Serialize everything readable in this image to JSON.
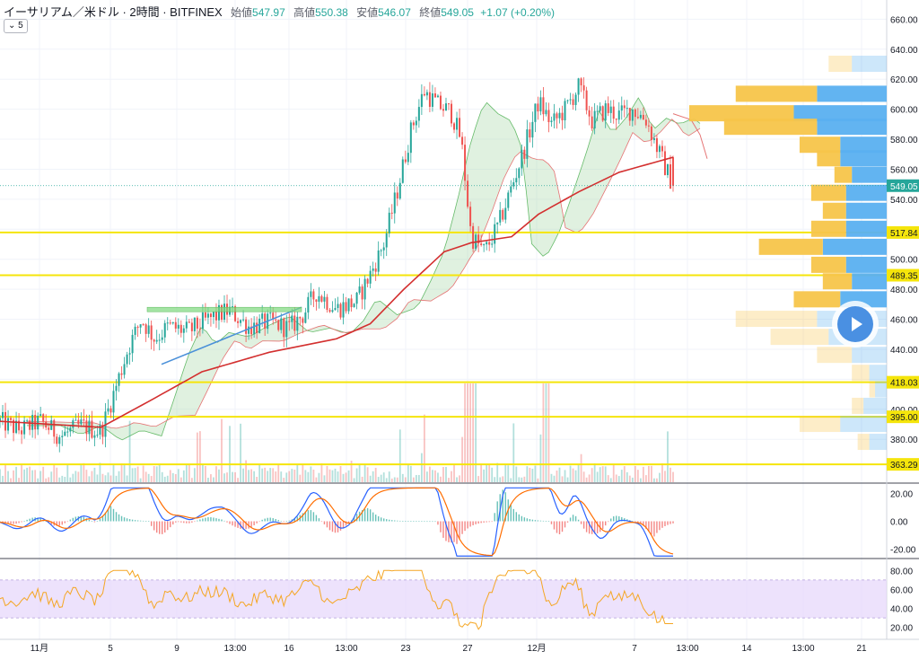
{
  "header": {
    "symbol": "イーサリアム／米ドル · 2時間 · BITFINEX",
    "open_label": "始値",
    "open": "547.97",
    "high_label": "高値",
    "high": "550.38",
    "low_label": "安値",
    "low": "546.07",
    "close_label": "終値",
    "close": "549.05",
    "change": "+1.07 (+0.20%)",
    "interval_chip": "5"
  },
  "colors": {
    "up": "#26a69a",
    "down": "#ef5350",
    "ma": "#d32f2f",
    "cloud_up": "#a5d6a7",
    "cloud_down": "#ef9a9a",
    "level": "#f5e50b",
    "vp_buy": "#f7c54a",
    "vp_sell": "#5ab0f0",
    "macd": "#2962ff",
    "signal": "#ff6d00",
    "rsi": "#f5a623",
    "rsi_band": "#e6d5fb",
    "trend": "#4a90d9",
    "box": "#7ed87e"
  },
  "price_axis": {
    "ticks": [
      "660.00",
      "640.00",
      "620.00",
      "600.00",
      "580.00",
      "560.00",
      "540.00",
      "520.00",
      "500.00",
      "480.00",
      "460.00",
      "440.00",
      "420.00",
      "400.00",
      "380.00"
    ],
    "current": "549.05"
  },
  "levels": [
    {
      "label": "517.84",
      "value": 517.84
    },
    {
      "label": "489.35",
      "value": 489.35
    },
    {
      "label": "418.03",
      "value": 418.03
    },
    {
      "label": "395.00",
      "value": 395.0
    },
    {
      "label": "363.29",
      "value": 363.29
    }
  ],
  "macd_axis": [
    "20.00",
    "0.00",
    "-20.00"
  ],
  "rsi_axis": [
    "80.00",
    "60.00",
    "40.00",
    "20.00"
  ],
  "time_axis": [
    "11月",
    "5",
    "9",
    "13:00",
    "16",
    "13:00",
    "23",
    "27",
    "12月",
    "7",
    "13:00",
    "14",
    "13:00",
    "21"
  ],
  "chart_data": {
    "type": "candlestick",
    "title": "イーサリアム／米ドル · 2時間 · BITFINEX",
    "ylim": [
      355,
      668
    ],
    "price_path": [
      {
        "t": 0.0,
        "p": 392
      },
      {
        "t": 0.03,
        "p": 386
      },
      {
        "t": 0.06,
        "p": 392
      },
      {
        "t": 0.09,
        "p": 382
      },
      {
        "t": 0.12,
        "p": 389
      },
      {
        "t": 0.15,
        "p": 385
      },
      {
        "t": 0.17,
        "p": 412
      },
      {
        "t": 0.19,
        "p": 440
      },
      {
        "t": 0.21,
        "p": 460
      },
      {
        "t": 0.23,
        "p": 447
      },
      {
        "t": 0.25,
        "p": 455
      },
      {
        "t": 0.28,
        "p": 452
      },
      {
        "t": 0.31,
        "p": 460
      },
      {
        "t": 0.34,
        "p": 466
      },
      {
        "t": 0.37,
        "p": 455
      },
      {
        "t": 0.4,
        "p": 458
      },
      {
        "t": 0.43,
        "p": 454
      },
      {
        "t": 0.45,
        "p": 463
      },
      {
        "t": 0.47,
        "p": 478
      },
      {
        "t": 0.5,
        "p": 467
      },
      {
        "t": 0.53,
        "p": 472
      },
      {
        "t": 0.55,
        "p": 490
      },
      {
        "t": 0.57,
        "p": 510
      },
      {
        "t": 0.59,
        "p": 545
      },
      {
        "t": 0.61,
        "p": 585
      },
      {
        "t": 0.63,
        "p": 612
      },
      {
        "t": 0.65,
        "p": 603
      },
      {
        "t": 0.67,
        "p": 598
      },
      {
        "t": 0.685,
        "p": 580
      },
      {
        "t": 0.7,
        "p": 515
      },
      {
        "t": 0.72,
        "p": 505
      },
      {
        "t": 0.74,
        "p": 522
      },
      {
        "t": 0.76,
        "p": 548
      },
      {
        "t": 0.78,
        "p": 575
      },
      {
        "t": 0.8,
        "p": 605
      },
      {
        "t": 0.82,
        "p": 590
      },
      {
        "t": 0.84,
        "p": 600
      },
      {
        "t": 0.86,
        "p": 615
      },
      {
        "t": 0.88,
        "p": 592
      },
      {
        "t": 0.9,
        "p": 600
      },
      {
        "t": 0.92,
        "p": 596
      },
      {
        "t": 0.94,
        "p": 600
      },
      {
        "t": 0.96,
        "p": 593
      },
      {
        "t": 0.98,
        "p": 570
      },
      {
        "t": 1.0,
        "p": 549
      }
    ],
    "moving_average": [
      {
        "t": 0.0,
        "p": 392
      },
      {
        "t": 0.15,
        "p": 388
      },
      {
        "t": 0.22,
        "p": 405
      },
      {
        "t": 0.3,
        "p": 425
      },
      {
        "t": 0.4,
        "p": 438
      },
      {
        "t": 0.5,
        "p": 447
      },
      {
        "t": 0.55,
        "p": 457
      },
      {
        "t": 0.6,
        "p": 480
      },
      {
        "t": 0.66,
        "p": 505
      },
      {
        "t": 0.7,
        "p": 511
      },
      {
        "t": 0.76,
        "p": 515
      },
      {
        "t": 0.8,
        "p": 530
      },
      {
        "t": 0.86,
        "p": 545
      },
      {
        "t": 0.92,
        "p": 558
      },
      {
        "t": 1.0,
        "p": 568
      }
    ],
    "volume_profile_price": [
      {
        "p": 630,
        "buy": 4,
        "sell": 6
      },
      {
        "p": 610,
        "buy": 14,
        "sell": 12
      },
      {
        "p": 597,
        "buy": 18,
        "sell": 16
      },
      {
        "p": 588,
        "buy": 16,
        "sell": 12
      },
      {
        "p": 576,
        "buy": 7,
        "sell": 8
      },
      {
        "p": 567,
        "buy": 4,
        "sell": 8
      },
      {
        "p": 556,
        "buy": 3,
        "sell": 6
      },
      {
        "p": 544,
        "buy": 6,
        "sell": 7
      },
      {
        "p": 532,
        "buy": 4,
        "sell": 7
      },
      {
        "p": 520,
        "buy": 6,
        "sell": 7
      },
      {
        "p": 508,
        "buy": 11,
        "sell": 11
      },
      {
        "p": 496,
        "buy": 6,
        "sell": 7
      },
      {
        "p": 485,
        "buy": 5,
        "sell": 6
      },
      {
        "p": 473,
        "buy": 8,
        "sell": 8
      },
      {
        "p": 460,
        "buy": 14,
        "sell": 12
      },
      {
        "p": 448,
        "buy": 10,
        "sell": 10
      },
      {
        "p": 436,
        "buy": 6,
        "sell": 6
      },
      {
        "p": 424,
        "buy": 3,
        "sell": 3
      },
      {
        "p": 413,
        "buy": 1,
        "sell": 2
      },
      {
        "p": 402,
        "buy": 2,
        "sell": 4
      },
      {
        "p": 390,
        "buy": 7,
        "sell": 8
      },
      {
        "p": 378,
        "buy": 2,
        "sell": 3
      }
    ]
  }
}
